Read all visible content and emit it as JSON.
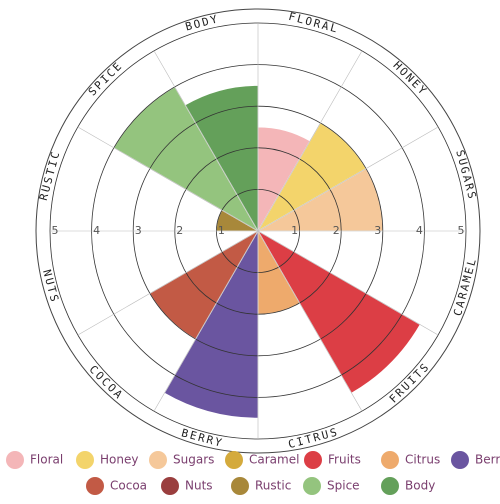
{
  "chart_data": {
    "type": "polar_area",
    "categories": [
      "Floral",
      "Honey",
      "Sugars",
      "Caramel",
      "Fruits",
      "Citrus",
      "Berry",
      "Cocoa",
      "Nuts",
      "Rustic",
      "Spice",
      "Body"
    ],
    "ring_labels": [
      "FLORAL",
      "HONEY",
      "SUGARS",
      "CARAMEL",
      "FRUITS",
      "CITRUS",
      "BERRY",
      "COCOA",
      "NUTS",
      "RUSTIC",
      "SPICE",
      "BODY"
    ],
    "values": [
      2.5,
      3,
      3,
      0,
      4.5,
      2,
      4.5,
      3,
      0,
      1,
      4,
      3.5
    ],
    "colors": [
      "#f4b6b8",
      "#f3d46b",
      "#f5c89a",
      "#d4aa3c",
      "#dc3e45",
      "#eeaa6c",
      "#6a55a0",
      "#c25a45",
      "#9a3e3e",
      "#a8883a",
      "#94c47e",
      "#64a05a"
    ],
    "rlim": [
      0,
      5
    ],
    "rticks": [
      1,
      2,
      3,
      4,
      5
    ],
    "grid": true
  }
}
